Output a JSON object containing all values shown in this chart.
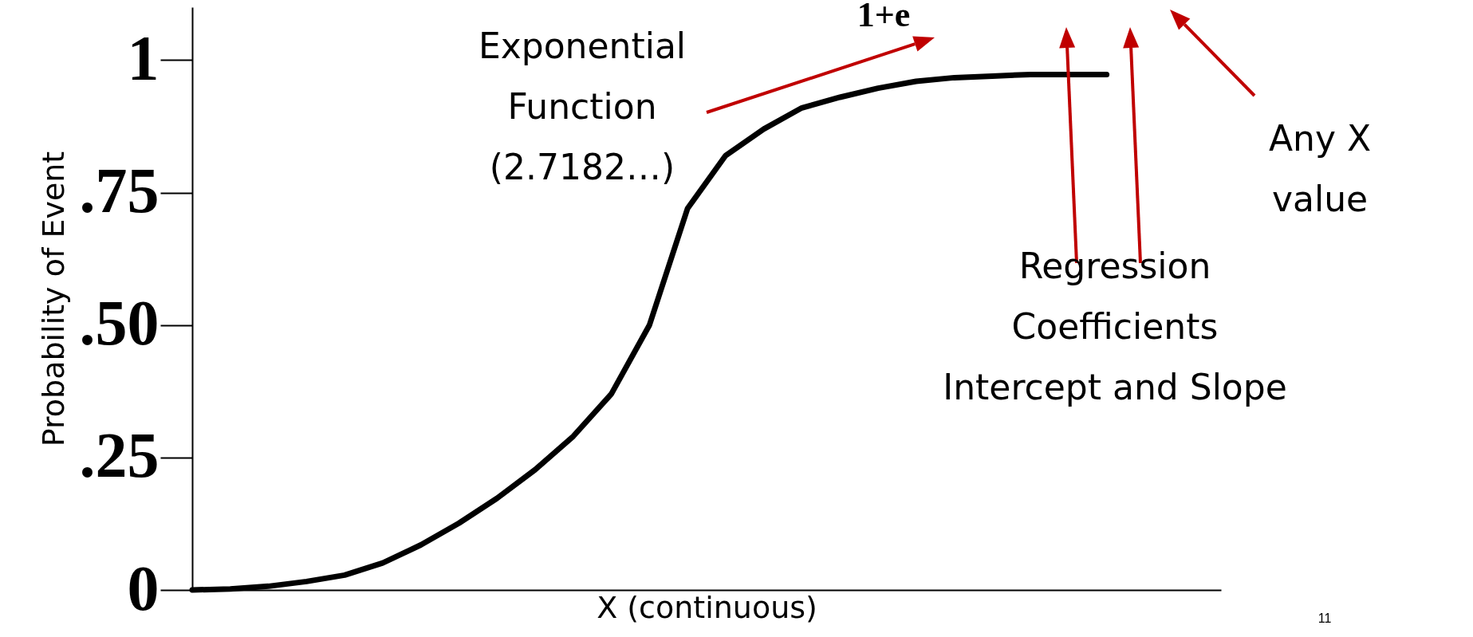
{
  "chart_data": {
    "type": "line",
    "xlabel": "X (continuous)",
    "ylabel": "Probability of Event",
    "categories": [
      null,
      null,
      null,
      null,
      null,
      null,
      null,
      null,
      null,
      null,
      null,
      null,
      null,
      null,
      null,
      null,
      null,
      null,
      null,
      null,
      null,
      null,
      null,
      null,
      null,
      null,
      null,
      null
    ],
    "series": [
      {
        "color": "#000000",
        "values": [
          0,
          0.002,
          0.007,
          0.016,
          0.028,
          0.051,
          0.085,
          0.126,
          0.173,
          0.227,
          0.29,
          0.37,
          0.5,
          0.72,
          0.82,
          0.87,
          0.91,
          0.93,
          0.947,
          0.96,
          0.967,
          0.97,
          0.973,
          0.973,
          0.973,
          null,
          null,
          null
        ]
      }
    ],
    "ylim": [
      0,
      1.1
    ],
    "yticks": [
      0,
      {
        "value": 0.25,
        "label": ".25"
      },
      {
        "value": 0.5,
        "label": ".50"
      },
      {
        "value": 0.75,
        "label": ".75"
      },
      1
    ],
    "tick_labels": "y",
    "line_style": "solid",
    "annotations": [
      "Exponential\nFunction\n(2.7182…)",
      "1+e",
      "Regression\nCoefficients\nIntercept and Slope",
      "Any X value",
      "11"
    ]
  }
}
